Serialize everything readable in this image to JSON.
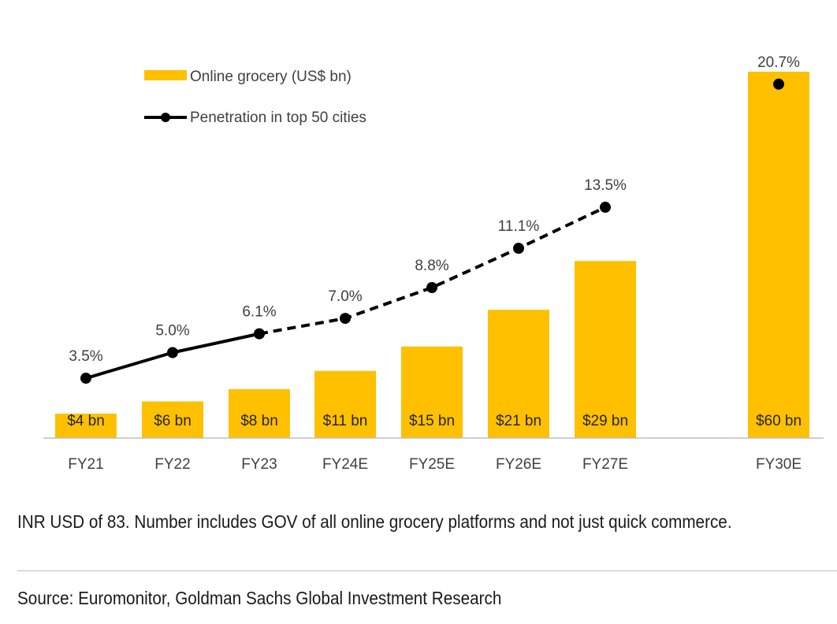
{
  "chart_data": {
    "type": "bar",
    "categories": [
      "FY21",
      "FY22",
      "FY23",
      "FY24E",
      "FY25E",
      "FY26E",
      "FY27E",
      "FY30E"
    ],
    "series": [
      {
        "name": "Online grocery (US$ bn)",
        "type": "bar",
        "values": [
          4,
          6,
          8,
          11,
          15,
          21,
          29,
          60
        ],
        "labels": [
          "$4 bn",
          "$6 bn",
          "$8 bn",
          "$11 bn",
          "$15 bn",
          "$21 bn",
          "$29 bn",
          "$60 bn"
        ],
        "color": "#FFC000"
      },
      {
        "name": "Penetration in top 50 cities",
        "type": "line",
        "values": [
          3.5,
          5.0,
          6.1,
          7.0,
          8.8,
          11.1,
          13.5,
          20.7
        ],
        "labels": [
          "3.5%",
          "5.0%",
          "6.1%",
          "7.0%",
          "8.8%",
          "11.1%",
          "13.5%",
          "20.7%"
        ],
        "color": "#000000",
        "solid_through": "FY23",
        "dashed_from": "FY23",
        "dashed_through": "FY27E"
      }
    ],
    "legend_position": "top-left",
    "grid": false
  },
  "footer": {
    "note": "INR USD of 83. Number includes GOV of all online grocery platforms and not just quick commerce.",
    "source": "Source: Euromonitor, Goldman Sachs Global Investment Research"
  }
}
